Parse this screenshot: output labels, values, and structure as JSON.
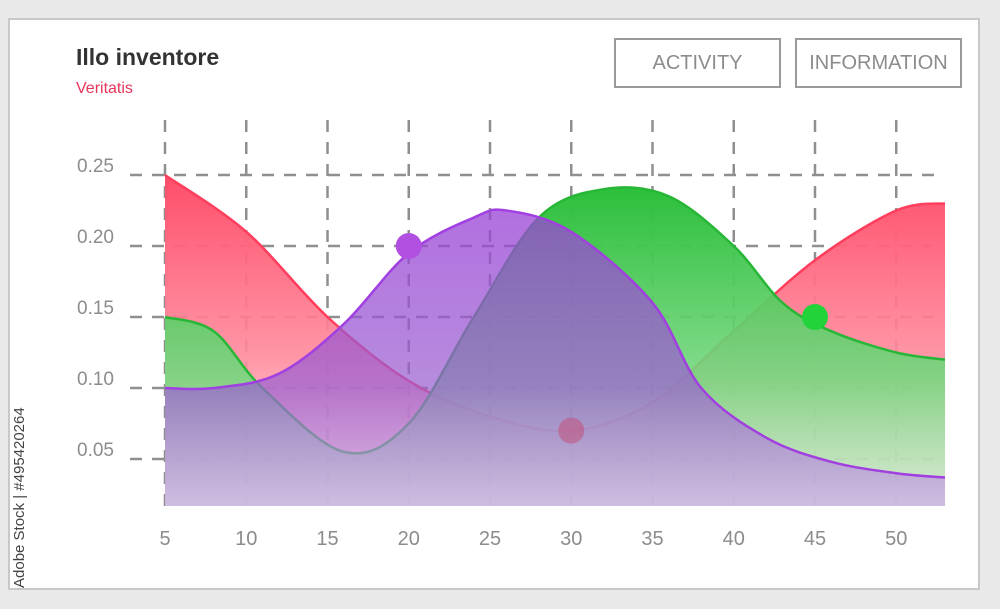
{
  "header": {
    "title": "Illo inventore",
    "subtitle": "Veritatis"
  },
  "buttons": {
    "activity": "ACTIVITY",
    "information": "INFORMATION"
  },
  "watermark": {
    "text": "Adobe Stock | #495420264"
  },
  "colors": {
    "red": "#ff4d6a",
    "green": "#2bbf3a",
    "purple": "#a64fdc",
    "subtitle": "#e8355a",
    "grid": "#8f8f8f"
  },
  "chart_data": {
    "type": "area",
    "title": "",
    "xlabel": "",
    "ylabel": "",
    "xlim": [
      5,
      53
    ],
    "ylim": [
      0,
      0.25
    ],
    "grid": true,
    "x_ticks": [
      "5",
      "10",
      "15",
      "20",
      "25",
      "30",
      "35",
      "40",
      "45",
      "50"
    ],
    "y_ticks": [
      "0.25",
      "0.20",
      "0.15",
      "0.10",
      "0.05"
    ],
    "series": [
      {
        "color": "#ff4d6a",
        "points": [
          [
            5,
            0.25
          ],
          [
            10,
            0.21
          ],
          [
            15,
            0.15
          ],
          [
            20,
            0.105
          ],
          [
            25,
            0.08
          ],
          [
            30,
            0.07
          ],
          [
            35,
            0.09
          ],
          [
            40,
            0.14
          ],
          [
            45,
            0.19
          ],
          [
            50,
            0.225
          ],
          [
            53,
            0.23
          ]
        ]
      },
      {
        "color": "#2bbf3a",
        "points": [
          [
            5,
            0.15
          ],
          [
            8,
            0.14
          ],
          [
            11,
            0.1
          ],
          [
            16,
            0.055
          ],
          [
            20,
            0.075
          ],
          [
            24,
            0.15
          ],
          [
            28,
            0.22
          ],
          [
            32,
            0.24
          ],
          [
            36,
            0.235
          ],
          [
            40,
            0.2
          ],
          [
            43,
            0.16
          ],
          [
            46,
            0.14
          ],
          [
            50,
            0.125
          ],
          [
            53,
            0.12
          ]
        ]
      },
      {
        "color": "#a64fdc",
        "points": [
          [
            5,
            0.1
          ],
          [
            8,
            0.1
          ],
          [
            12,
            0.11
          ],
          [
            16,
            0.145
          ],
          [
            20,
            0.195
          ],
          [
            24,
            0.22
          ],
          [
            26,
            0.225
          ],
          [
            30,
            0.21
          ],
          [
            35,
            0.16
          ],
          [
            38,
            0.1
          ],
          [
            42,
            0.065
          ],
          [
            46,
            0.048
          ],
          [
            50,
            0.04
          ],
          [
            53,
            0.037
          ]
        ]
      }
    ],
    "markers": [
      {
        "series": 2,
        "x": 20,
        "y": 0.2
      },
      {
        "series": 0,
        "x": 30,
        "y": 0.07
      },
      {
        "series": 1,
        "x": 45,
        "y": 0.15
      }
    ]
  }
}
